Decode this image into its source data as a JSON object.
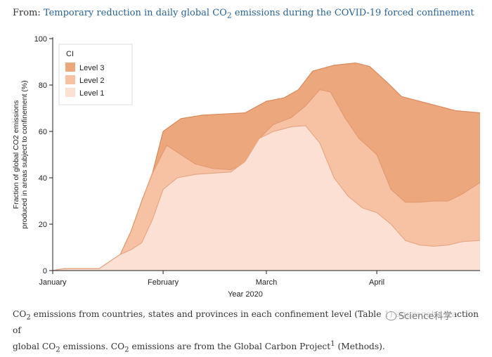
{
  "header": {
    "prefix": "From:",
    "link_pre": "Temporary reduction in daily global CO",
    "link_sub": "2",
    "link_post": " emissions during the COVID-19 forced confinement"
  },
  "caption": {
    "line1_a": "CO",
    "line1_sub": "2",
    "line1_b": " emissions from countries, states and provinces in each confinement level (Table 1) aggregat",
    "line1_c": "s fraction of",
    "line2_a": "global CO",
    "line2_sub": "2",
    "line2_b": " emissions. CO",
    "line2_sub2": "2",
    "line2_c": " emissions are from the Global Carbon Project",
    "line2_sup": "1",
    "line2_d": " (Methods)."
  },
  "watermark": {
    "text": "Science科学",
    "icon": "wechat-icon"
  },
  "chart_data": {
    "type": "area",
    "stacked": true,
    "xlabel": "Year 2020",
    "ylabel_line1": "Fraction of global CO2 emissions",
    "ylabel_line2": "produced in areas subject to confinement (%)",
    "ylim": [
      0,
      100
    ],
    "yticks": [
      0,
      20,
      40,
      60,
      80,
      100
    ],
    "xlim": [
      "2020-01-01",
      "2020-04-30"
    ],
    "xticks": [
      {
        "date": "2020-01-01",
        "label": "January"
      },
      {
        "date": "2020-02-01",
        "label": "February"
      },
      {
        "date": "2020-03-01",
        "label": "March"
      },
      {
        "date": "2020-04-01",
        "label": "April"
      }
    ],
    "legend": {
      "title": "CI",
      "position": "top-left"
    },
    "series": [
      {
        "name": "Level 1",
        "color": "#fbe0d3",
        "edge": "#e7a888",
        "points": [
          [
            "2020-01-01",
            0
          ],
          [
            "2020-01-04",
            0.8
          ],
          [
            "2020-01-14",
            0.8
          ],
          [
            "2020-01-20",
            7
          ],
          [
            "2020-01-23",
            9
          ],
          [
            "2020-01-26",
            12
          ],
          [
            "2020-01-29",
            22
          ],
          [
            "2020-02-01",
            35
          ],
          [
            "2020-02-05",
            40
          ],
          [
            "2020-02-10",
            41.5
          ],
          [
            "2020-02-15",
            42
          ],
          [
            "2020-02-20",
            42.5
          ],
          [
            "2020-02-24",
            47
          ],
          [
            "2020-02-28",
            57
          ],
          [
            "2020-03-03",
            60
          ],
          [
            "2020-03-08",
            62
          ],
          [
            "2020-03-12",
            62.5
          ],
          [
            "2020-03-16",
            55
          ],
          [
            "2020-03-20",
            40
          ],
          [
            "2020-03-24",
            32
          ],
          [
            "2020-03-28",
            27
          ],
          [
            "2020-04-01",
            25
          ],
          [
            "2020-04-05",
            20
          ],
          [
            "2020-04-09",
            13
          ],
          [
            "2020-04-13",
            11
          ],
          [
            "2020-04-17",
            10.5
          ],
          [
            "2020-04-21",
            11
          ],
          [
            "2020-04-25",
            12.5
          ],
          [
            "2020-04-30",
            13
          ]
        ]
      },
      {
        "name": "Level 2",
        "color": "#f6c2a3",
        "edge": "#e39a73",
        "points": [
          [
            "2020-01-01",
            0
          ],
          [
            "2020-01-04",
            0.8
          ],
          [
            "2020-01-14",
            0.8
          ],
          [
            "2020-01-20",
            7
          ],
          [
            "2020-01-23",
            17
          ],
          [
            "2020-01-26",
            30
          ],
          [
            "2020-01-29",
            42
          ],
          [
            "2020-02-02",
            54
          ],
          [
            "2020-02-06",
            50
          ],
          [
            "2020-02-10",
            46
          ],
          [
            "2020-02-15",
            44
          ],
          [
            "2020-02-20",
            43.5
          ],
          [
            "2020-02-24",
            46
          ],
          [
            "2020-02-28",
            57
          ],
          [
            "2020-03-03",
            63
          ],
          [
            "2020-03-08",
            66
          ],
          [
            "2020-03-12",
            71
          ],
          [
            "2020-03-16",
            78
          ],
          [
            "2020-03-19",
            77
          ],
          [
            "2020-03-23",
            66
          ],
          [
            "2020-03-27",
            57
          ],
          [
            "2020-04-01",
            50
          ],
          [
            "2020-04-05",
            35
          ],
          [
            "2020-04-09",
            29.5
          ],
          [
            "2020-04-13",
            29.5
          ],
          [
            "2020-04-17",
            30
          ],
          [
            "2020-04-21",
            30
          ],
          [
            "2020-04-25",
            33
          ],
          [
            "2020-04-30",
            38
          ]
        ]
      },
      {
        "name": "Level 3",
        "color": "#eca87c",
        "edge": "#d98a5c",
        "points": [
          [
            "2020-01-01",
            0
          ],
          [
            "2020-01-04",
            0.8
          ],
          [
            "2020-01-14",
            0.8
          ],
          [
            "2020-01-20",
            7
          ],
          [
            "2020-01-23",
            17
          ],
          [
            "2020-01-26",
            30
          ],
          [
            "2020-01-29",
            42
          ],
          [
            "2020-02-01",
            60
          ],
          [
            "2020-02-06",
            65.5
          ],
          [
            "2020-02-12",
            67
          ],
          [
            "2020-02-18",
            67.5
          ],
          [
            "2020-02-24",
            68
          ],
          [
            "2020-03-01",
            73
          ],
          [
            "2020-03-06",
            74.5
          ],
          [
            "2020-03-10",
            78
          ],
          [
            "2020-03-14",
            86
          ],
          [
            "2020-03-20",
            88.5
          ],
          [
            "2020-03-26",
            89.5
          ],
          [
            "2020-03-30",
            88
          ],
          [
            "2020-04-04",
            81
          ],
          [
            "2020-04-08",
            75
          ],
          [
            "2020-04-13",
            73
          ],
          [
            "2020-04-18",
            71
          ],
          [
            "2020-04-23",
            69
          ],
          [
            "2020-04-30",
            68
          ]
        ]
      }
    ]
  }
}
